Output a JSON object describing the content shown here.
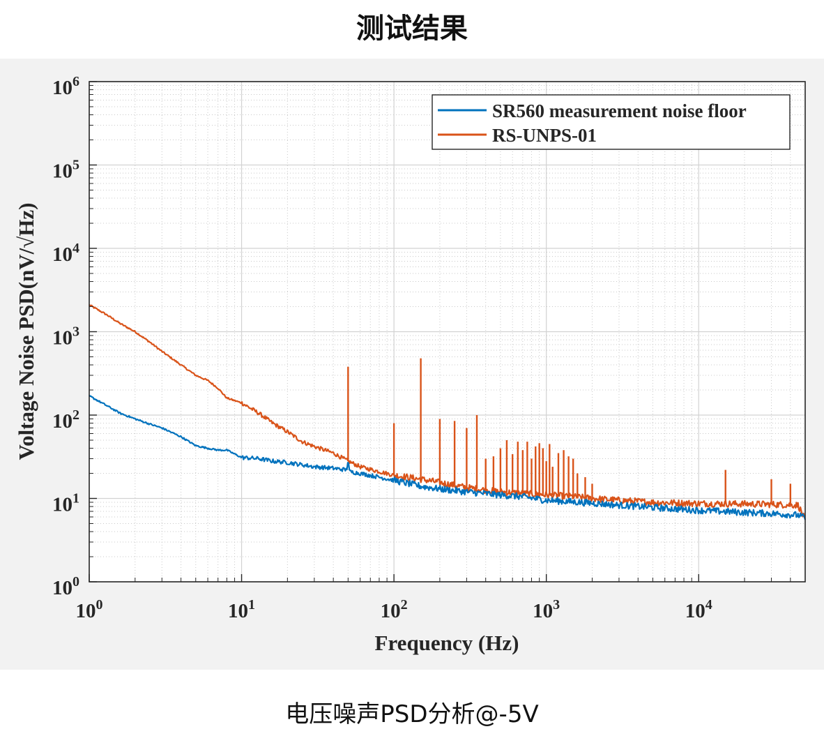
{
  "page": {
    "title": "测试结果",
    "caption": "电压噪声PSD分析@-5V"
  },
  "chart_data": {
    "type": "line",
    "xlabel": "Frequency (Hz)",
    "ylabel": "Voltage Noise PSD(nV/√Hz)",
    "x_scale": "log",
    "y_scale": "log",
    "xlim": [
      1,
      50000
    ],
    "ylim": [
      1,
      1000000
    ],
    "x_ticks": [
      {
        "value": 1,
        "base": "10",
        "exp": "0"
      },
      {
        "value": 10,
        "base": "10",
        "exp": "1"
      },
      {
        "value": 100,
        "base": "10",
        "exp": "2"
      },
      {
        "value": 1000,
        "base": "10",
        "exp": "3"
      },
      {
        "value": 10000,
        "base": "10",
        "exp": "4"
      }
    ],
    "y_ticks": [
      {
        "value": 1,
        "base": "10",
        "exp": "0"
      },
      {
        "value": 10,
        "base": "10",
        "exp": "1"
      },
      {
        "value": 100,
        "base": "10",
        "exp": "2"
      },
      {
        "value": 1000,
        "base": "10",
        "exp": "3"
      },
      {
        "value": 10000,
        "base": "10",
        "exp": "4"
      },
      {
        "value": 100000,
        "base": "10",
        "exp": "5"
      },
      {
        "value": 1000000,
        "base": "10",
        "exp": "6"
      }
    ],
    "grid": true,
    "minor_grid": true,
    "legend_position": "top-right",
    "series": [
      {
        "name": "SR560 measurement noise floor",
        "color": "#0072BD",
        "x": [
          1,
          1.3,
          1.6,
          2,
          2.5,
          3,
          4,
          5,
          6,
          7,
          8,
          10,
          13,
          16,
          20,
          30,
          40,
          49,
          50,
          51,
          60,
          80,
          100,
          150,
          200,
          300,
          500,
          700,
          1000,
          2000,
          3000,
          5000,
          10000,
          20000,
          30000,
          45000,
          50000
        ],
        "y": [
          170,
          130,
          105,
          90,
          78,
          70,
          55,
          43,
          40,
          38,
          38,
          31,
          30,
          28,
          27,
          24,
          23,
          22,
          30,
          21,
          20,
          18,
          16.5,
          14,
          13,
          12,
          11,
          10.5,
          9.5,
          8.8,
          8.3,
          7.8,
          7.2,
          6.8,
          6.6,
          6.3,
          5.8
        ]
      },
      {
        "name": "RS-UNPS-01",
        "color": "#D95319",
        "x": [
          1,
          1.3,
          1.6,
          2,
          2.5,
          3,
          4,
          5,
          6,
          7,
          8,
          10,
          13,
          16,
          20,
          25,
          30,
          40,
          50,
          60,
          80,
          100,
          150,
          200,
          300,
          500,
          700,
          1000,
          1500,
          2000,
          3000,
          5000,
          10000,
          20000,
          30000,
          45000,
          50000
        ],
        "y": [
          2100,
          1600,
          1250,
          1000,
          750,
          580,
          400,
          300,
          260,
          210,
          160,
          140,
          105,
          80,
          63,
          48,
          42,
          35,
          28,
          24,
          21,
          19,
          17,
          15.5,
          13.5,
          12,
          11.5,
          11,
          10.5,
          10,
          9.5,
          9,
          8.7,
          8.6,
          8.5,
          8.3,
          5.5
        ]
      }
    ],
    "spikes": [
      {
        "series": "RS-UNPS-01",
        "x": 50,
        "y": 380
      },
      {
        "series": "RS-UNPS-01",
        "x": 100,
        "y": 80
      },
      {
        "series": "RS-UNPS-01",
        "x": 150,
        "y": 480
      },
      {
        "series": "RS-UNPS-01",
        "x": 200,
        "y": 90
      },
      {
        "series": "RS-UNPS-01",
        "x": 250,
        "y": 85
      },
      {
        "series": "RS-UNPS-01",
        "x": 300,
        "y": 70
      },
      {
        "series": "RS-UNPS-01",
        "x": 350,
        "y": 100
      },
      {
        "series": "RS-UNPS-01",
        "x": 400,
        "y": 30
      },
      {
        "series": "RS-UNPS-01",
        "x": 450,
        "y": 32
      },
      {
        "series": "RS-UNPS-01",
        "x": 500,
        "y": 40
      },
      {
        "series": "RS-UNPS-01",
        "x": 550,
        "y": 50
      },
      {
        "series": "RS-UNPS-01",
        "x": 600,
        "y": 34
      },
      {
        "series": "RS-UNPS-01",
        "x": 650,
        "y": 48
      },
      {
        "series": "RS-UNPS-01",
        "x": 700,
        "y": 38
      },
      {
        "series": "RS-UNPS-01",
        "x": 750,
        "y": 48
      },
      {
        "series": "RS-UNPS-01",
        "x": 800,
        "y": 30
      },
      {
        "series": "RS-UNPS-01",
        "x": 850,
        "y": 42
      },
      {
        "series": "RS-UNPS-01",
        "x": 900,
        "y": 46
      },
      {
        "series": "RS-UNPS-01",
        "x": 950,
        "y": 40
      },
      {
        "series": "RS-UNPS-01",
        "x": 1000,
        "y": 28
      },
      {
        "series": "RS-UNPS-01",
        "x": 1050,
        "y": 45
      },
      {
        "series": "RS-UNPS-01",
        "x": 1100,
        "y": 24
      },
      {
        "series": "RS-UNPS-01",
        "x": 1200,
        "y": 35
      },
      {
        "series": "RS-UNPS-01",
        "x": 1300,
        "y": 38
      },
      {
        "series": "RS-UNPS-01",
        "x": 1400,
        "y": 32
      },
      {
        "series": "RS-UNPS-01",
        "x": 1500,
        "y": 30
      },
      {
        "series": "RS-UNPS-01",
        "x": 1600,
        "y": 20
      },
      {
        "series": "RS-UNPS-01",
        "x": 1800,
        "y": 18
      },
      {
        "series": "RS-UNPS-01",
        "x": 2000,
        "y": 15
      },
      {
        "series": "RS-UNPS-01",
        "x": 15000,
        "y": 22
      },
      {
        "series": "RS-UNPS-01",
        "x": 30000,
        "y": 17
      },
      {
        "series": "RS-UNPS-01",
        "x": 40000,
        "y": 15
      },
      {
        "series": "SR560 measurement noise floor",
        "x": 50,
        "y": 30
      }
    ]
  }
}
